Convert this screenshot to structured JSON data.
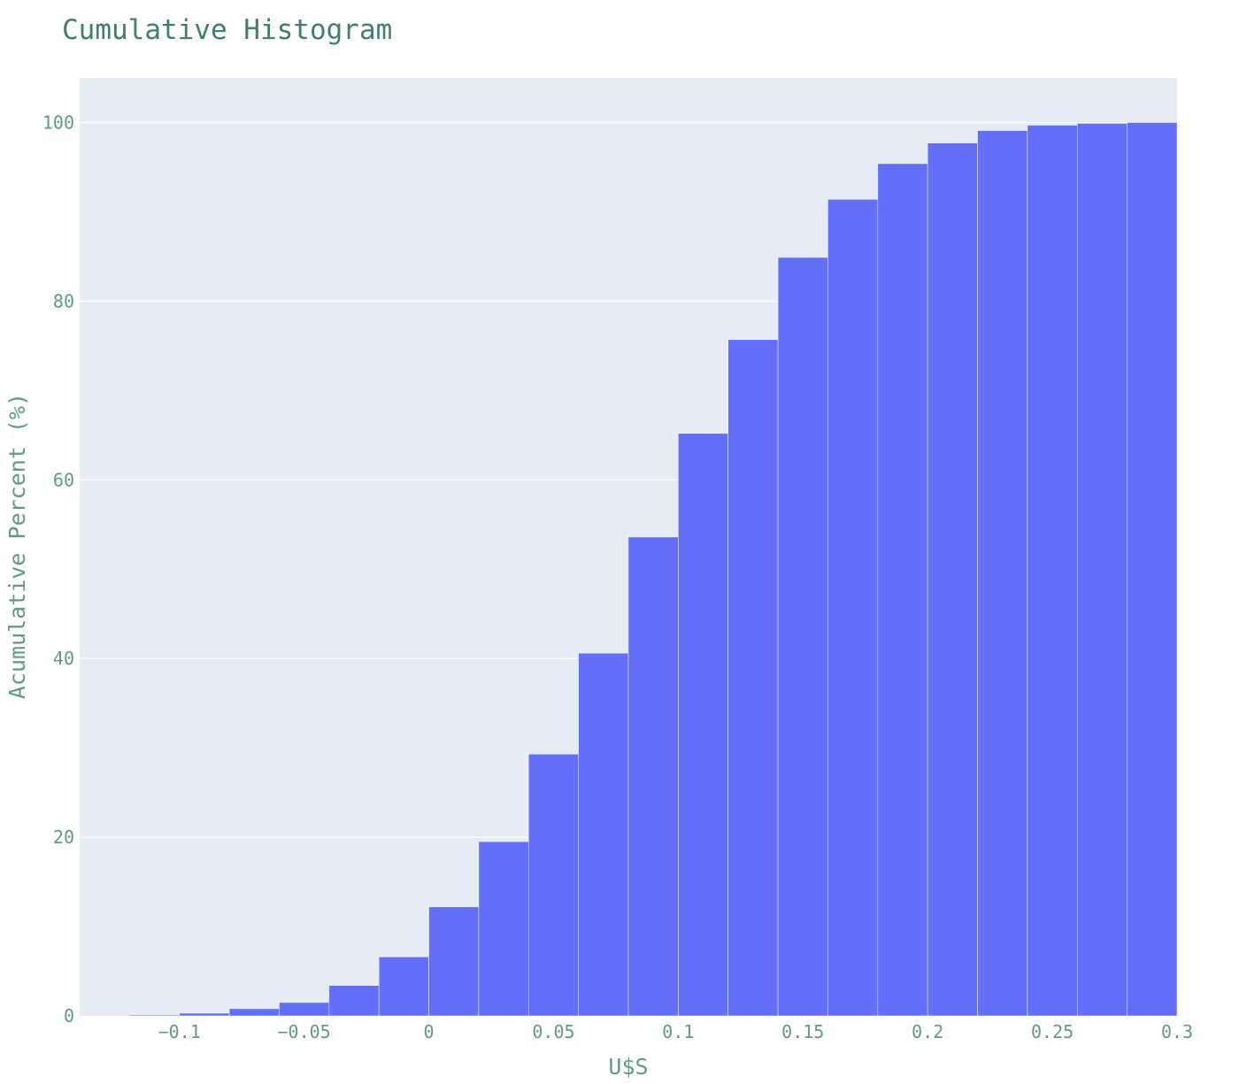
{
  "chart_data": {
    "type": "bar",
    "title": "Cumulative Histogram",
    "xlabel": "U$S",
    "ylabel": "Acumulative Percent (%)",
    "xlim": [
      -0.14,
      0.3
    ],
    "ylim": [
      0,
      105
    ],
    "grid": true,
    "x_ticks": [
      {
        "value": -0.1,
        "label": "−0.1"
      },
      {
        "value": -0.05,
        "label": "−0.05"
      },
      {
        "value": 0,
        "label": "0"
      },
      {
        "value": 0.05,
        "label": "0.05"
      },
      {
        "value": 0.1,
        "label": "0.1"
      },
      {
        "value": 0.15,
        "label": "0.15"
      },
      {
        "value": 0.2,
        "label": "0.2"
      },
      {
        "value": 0.25,
        "label": "0.25"
      },
      {
        "value": 0.3,
        "label": "0.3"
      }
    ],
    "y_ticks": [
      {
        "value": 0,
        "label": "0"
      },
      {
        "value": 20,
        "label": "20"
      },
      {
        "value": 40,
        "label": "40"
      },
      {
        "value": 60,
        "label": "60"
      },
      {
        "value": 80,
        "label": "80"
      },
      {
        "value": 100,
        "label": "100"
      }
    ],
    "bins": [
      {
        "x0": -0.12,
        "x1": -0.1,
        "value": 0.1
      },
      {
        "x0": -0.1,
        "x1": -0.08,
        "value": 0.3
      },
      {
        "x0": -0.08,
        "x1": -0.06,
        "value": 0.8
      },
      {
        "x0": -0.06,
        "x1": -0.04,
        "value": 1.5
      },
      {
        "x0": -0.04,
        "x1": -0.02,
        "value": 3.4
      },
      {
        "x0": -0.02,
        "x1": 0.0,
        "value": 6.6
      },
      {
        "x0": 0.0,
        "x1": 0.02,
        "value": 12.2
      },
      {
        "x0": 0.02,
        "x1": 0.04,
        "value": 19.5
      },
      {
        "x0": 0.04,
        "x1": 0.06,
        "value": 29.3
      },
      {
        "x0": 0.06,
        "x1": 0.08,
        "value": 40.6
      },
      {
        "x0": 0.08,
        "x1": 0.1,
        "value": 53.6
      },
      {
        "x0": 0.1,
        "x1": 0.12,
        "value": 65.2
      },
      {
        "x0": 0.12,
        "x1": 0.14,
        "value": 75.7
      },
      {
        "x0": 0.14,
        "x1": 0.16,
        "value": 84.9
      },
      {
        "x0": 0.16,
        "x1": 0.18,
        "value": 91.4
      },
      {
        "x0": 0.18,
        "x1": 0.2,
        "value": 95.4
      },
      {
        "x0": 0.2,
        "x1": 0.22,
        "value": 97.7
      },
      {
        "x0": 0.22,
        "x1": 0.24,
        "value": 99.1
      },
      {
        "x0": 0.24,
        "x1": 0.26,
        "value": 99.7
      },
      {
        "x0": 0.26,
        "x1": 0.28,
        "value": 99.9
      },
      {
        "x0": 0.28,
        "x1": 0.3,
        "value": 100.0
      }
    ],
    "colors": {
      "bar": "#636efa",
      "plot_background": "#e5ecf6",
      "gridline": "#ffffff",
      "text": "#5f9a8a",
      "title": "#3f7f6f"
    }
  }
}
